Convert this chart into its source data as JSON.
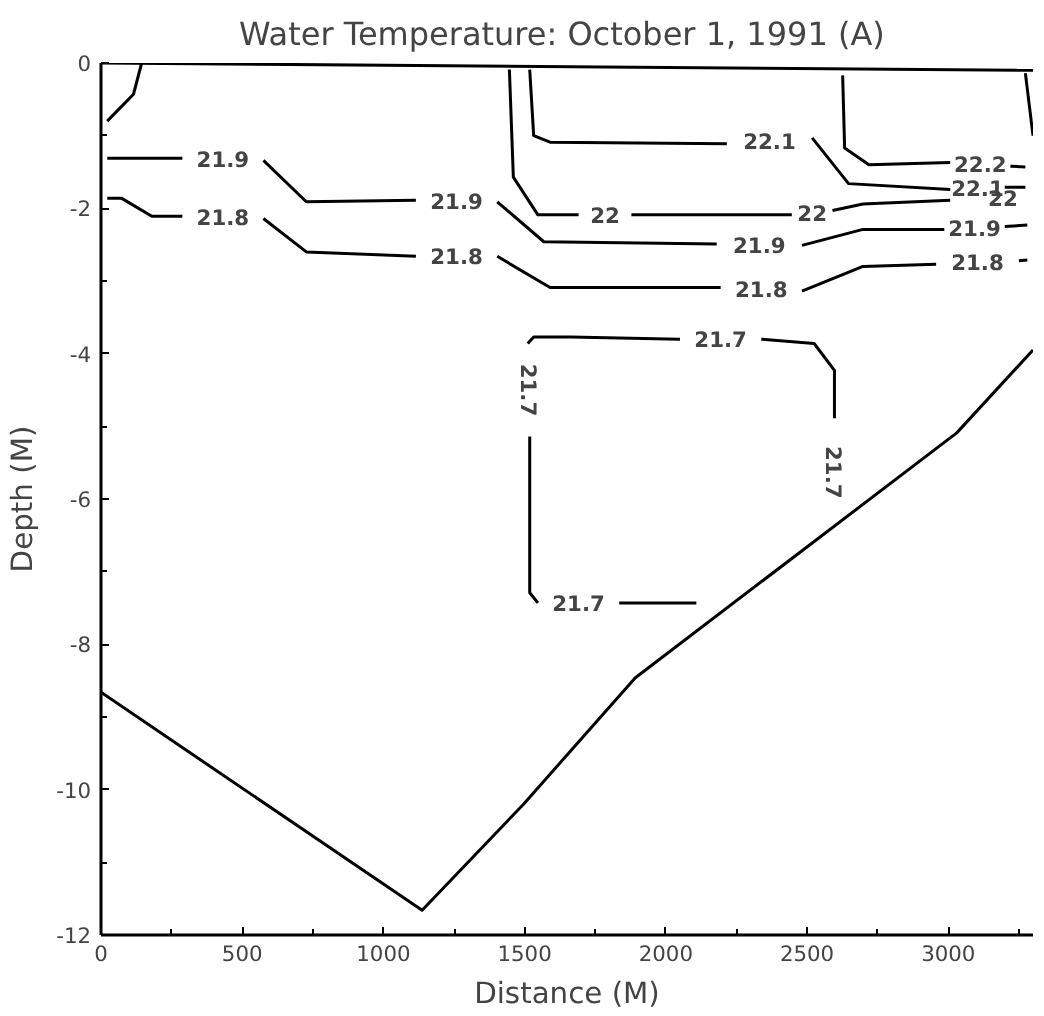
{
  "chart_data": {
    "type": "line",
    "title": "Water Temperature:  October 1, 1991 (A)",
    "xlabel": "Distance (M)",
    "ylabel": "Depth (M)",
    "xlim": [
      0,
      3300
    ],
    "ylim": [
      -12,
      0
    ],
    "xticks": [
      0,
      {
        "value": 250,
        "label": null
      },
      500,
      {
        "value": 750,
        "label": null
      },
      1000,
      {
        "value": 1250,
        "label": null
      },
      1500,
      {
        "value": 1750,
        "label": null
      },
      2000,
      {
        "value": 2250,
        "label": null
      },
      2500,
      {
        "value": 2750,
        "label": null
      },
      3000,
      {
        "value": 3250,
        "label": null
      }
    ],
    "yticks": [
      -12,
      {
        "value": -11,
        "label": null
      },
      -10,
      {
        "value": -9,
        "label": null
      },
      -8,
      {
        "value": -7,
        "label": null
      },
      -6,
      {
        "value": -5,
        "label": null
      },
      -4,
      {
        "value": -3,
        "label": null
      },
      -2,
      {
        "value": -1,
        "label": null
      },
      0
    ],
    "grid": false,
    "legend": false,
    "marker": "none",
    "line_style": "solid",
    "series": [
      {
        "color": "#000000",
        "x": [
          0,
          1137,
          1496,
          1892,
          3030,
          3300
        ],
        "values": [
          -8.66,
          -11.66,
          -10.2,
          -8.46,
          -5.09,
          -3.95
        ]
      },
      {
        "color": "#000000",
        "x": [
          0,
          3300
        ],
        "values": [
          0,
          -0.1
        ]
      },
      {
        "color": "#000000",
        "x": [
          22,
          115,
          144
        ],
        "values": [
          -0.8,
          -0.43,
          0
        ]
      },
      {
        "name": "21.9",
        "color": "#000000",
        "x": [
          22,
          288,
          null,
          575,
          727,
          1115,
          null,
          1403,
          1568,
          2180,
          null,
          2482,
          2698,
          2986,
          null,
          3200,
          3280
        ],
        "values": [
          -1.31,
          -1.31,
          null,
          -1.34,
          -1.91,
          -1.89,
          null,
          -1.91,
          -2.46,
          -2.49,
          null,
          -2.51,
          -2.29,
          -2.29,
          null,
          -2.25,
          -2.23
        ]
      },
      {
        "name": "21.8",
        "color": "#000000",
        "x": [
          22,
          72,
          180,
          288,
          null,
          575,
          727,
          1115,
          null,
          1403,
          1590,
          2194,
          null,
          2482,
          2698,
          2957,
          null,
          3250,
          3280
        ],
        "values": [
          -1.86,
          -1.86,
          -2.11,
          -2.11,
          null,
          -2.14,
          -2.6,
          -2.66,
          null,
          -2.66,
          -3.09,
          -3.09,
          null,
          -3.14,
          -2.8,
          -2.77,
          null,
          -2.72,
          -2.71
        ]
      },
      {
        "name": "22",
        "color": "#000000",
        "x": [
          1446,
          1460,
          1547,
          1691,
          null,
          1878,
          2446,
          null,
          2590,
          2698,
          3007,
          null
        ],
        "values": [
          -0.09,
          -1.57,
          -2.09,
          -2.09,
          null,
          -2.09,
          -2.09,
          null,
          -2.03,
          -1.94,
          -1.89,
          null
        ]
      },
      {
        "name": "22.1",
        "color": "#000000",
        "x": [
          1518,
          1532,
          1590,
          2216,
          null,
          2518,
          2647,
          3007,
          null,
          3200,
          3273
        ],
        "values": [
          -0.09,
          -1.0,
          -1.09,
          -1.11,
          null,
          -1.03,
          -1.66,
          -1.74,
          null,
          -1.71,
          -1.71
        ]
      },
      {
        "name": "22.2",
        "color": "#000000",
        "x": [
          2626,
          2633,
          2719,
          3007,
          null,
          3220,
          3273
        ],
        "values": [
          -0.17,
          -1.17,
          -1.4,
          -1.37,
          null,
          -1.42,
          -1.43
        ]
      },
      {
        "color": "#000000",
        "x": [
          3273,
          3300
        ],
        "values": [
          -0.14,
          -1.0
        ]
      },
      {
        "name": "21.7",
        "color": "#000000",
        "x": [
          2108,
          1835,
          null,
          1547,
          1518,
          1518,
          null,
          1511,
          1532,
          1662,
          2050,
          null,
          2338,
          2525,
          2597,
          2597,
          null
        ],
        "values": [
          -7.43,
          -7.43,
          null,
          -7.43,
          -7.29,
          -5.14,
          null,
          -3.86,
          -3.77,
          -3.77,
          -3.8,
          null,
          -3.8,
          -3.86,
          -4.23,
          -4.89,
          null
        ]
      }
    ]
  }
}
